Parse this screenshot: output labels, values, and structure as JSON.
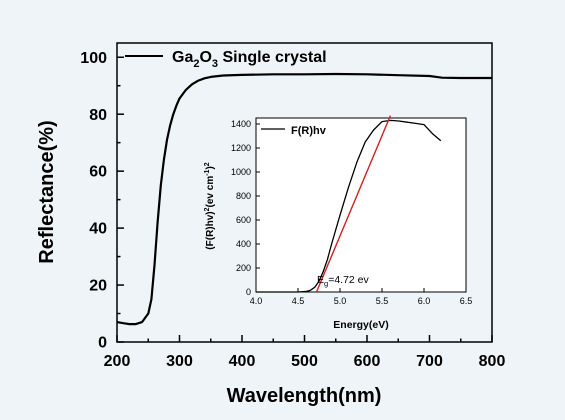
{
  "chart_data": [
    {
      "type": "line",
      "xlabel": "Wavelength(nm)",
      "ylabel": "Reflectance(%)",
      "xlim": [
        200,
        800
      ],
      "ylim": [
        0,
        105
      ],
      "xticks": [
        200,
        300,
        400,
        500,
        600,
        700,
        800
      ],
      "yticks": [
        0,
        20,
        40,
        60,
        80,
        100
      ],
      "legend": {
        "position": "top-left",
        "entries": [
          {
            "prefix": "Ga",
            "sub1": "2",
            "mid": "O",
            "sub2": "3",
            "suffix": " Single crystal"
          }
        ]
      },
      "series": [
        {
          "color": "#000000",
          "x": [
            200,
            210,
            220,
            230,
            240,
            250,
            255,
            260,
            265,
            270,
            275,
            280,
            285,
            290,
            295,
            300,
            310,
            320,
            330,
            340,
            350,
            370,
            400,
            450,
            500,
            550,
            600,
            650,
            700,
            720,
            750,
            800
          ],
          "y": [
            7,
            6.6,
            6.3,
            6.3,
            7,
            10,
            15,
            27,
            42,
            55,
            64,
            71,
            76,
            80,
            83,
            85.5,
            88.5,
            90.5,
            91.8,
            92.6,
            93.1,
            93.6,
            93.8,
            94,
            94,
            94.1,
            94,
            93.7,
            93.4,
            92.8,
            92.7,
            92.7
          ]
        }
      ]
    },
    {
      "type": "line",
      "xlabel": "Energy(eV)",
      "ylabel_parts": [
        "(F(R)hv)",
        "2",
        "(ev cm",
        "-1",
        ")",
        "2"
      ],
      "xlim": [
        4.0,
        6.5
      ],
      "ylim": [
        0,
        1450
      ],
      "xticks": [
        4.0,
        4.5,
        5.0,
        5.5,
        6.0,
        6.5
      ],
      "yticks": [
        0,
        200,
        400,
        600,
        800,
        1000,
        1200,
        1400
      ],
      "legend": {
        "position": "top-left",
        "entries": [
          "F(R)hv"
        ]
      },
      "series": [
        {
          "color": "#000000",
          "x": [
            4.0,
            4.5,
            4.6,
            4.65,
            4.7,
            4.75,
            4.8,
            4.85,
            4.9,
            5.0,
            5.1,
            5.2,
            5.3,
            5.4,
            5.5,
            5.6,
            5.7,
            5.8,
            5.9,
            6.0,
            6.1,
            6.2
          ],
          "y": [
            0,
            0,
            5,
            15,
            40,
            90,
            170,
            270,
            400,
            640,
            870,
            1080,
            1250,
            1350,
            1420,
            1430,
            1425,
            1415,
            1405,
            1395,
            1320,
            1260
          ]
        },
        {
          "color": "#cc2222",
          "x": [
            4.72,
            5.6
          ],
          "y": [
            0,
            1470
          ]
        }
      ],
      "annotation": {
        "prefix": "E",
        "sub": "g",
        "suffix": "=4.72 ev",
        "color": "#cc2222"
      }
    }
  ]
}
